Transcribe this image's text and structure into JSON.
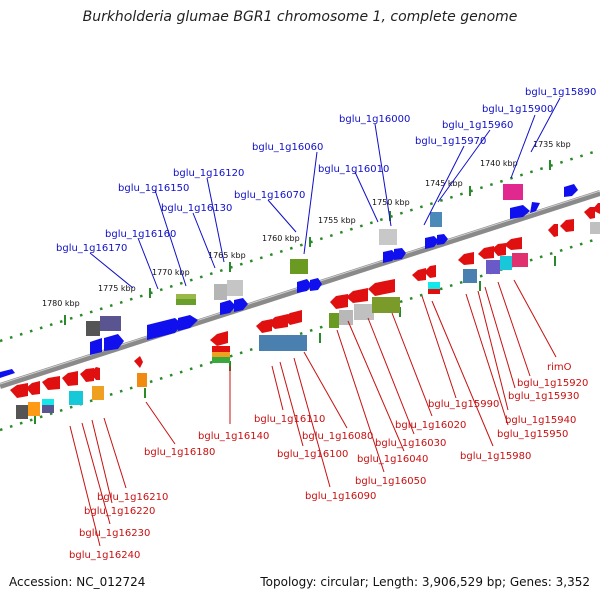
{
  "header": {
    "title": "Burkholderia glumae BGR1 chromosome 1, complete genome"
  },
  "footer": {
    "accession": "Accession: NC_012724",
    "summary": "Topology: circular; Length: 3,906,529 bp; Genes: 3,352"
  },
  "scale": {
    "ticks": [
      "1735 kbp",
      "1740 kbp",
      "1745 kbp",
      "1750 kbp",
      "1755 kbp",
      "1760 kbp",
      "1765 kbp",
      "1770 kbp",
      "1775 kbp",
      "1780 kbp"
    ]
  },
  "top_genes": [
    "bglu_1g15890",
    "bglu_1g15900",
    "bglu_1g15960",
    "bglu_1g15970",
    "bglu_1g16000",
    "bglu_1g16010",
    "bglu_1g16060",
    "bglu_1g16070",
    "bglu_1g16120",
    "bglu_1g16150",
    "bglu_1g16130",
    "bglu_1g16160",
    "bglu_1g16170"
  ],
  "bottom_genes": [
    "rimO",
    "bglu_1g15920",
    "bglu_1g15930",
    "bglu_1g15940",
    "bglu_1g15950",
    "bglu_1g15990",
    "bglu_1g15980",
    "bglu_1g16020",
    "bglu_1g16030",
    "bglu_1g16040",
    "bglu_1g16050",
    "bglu_1g16080",
    "bglu_1g16090",
    "bglu_1g16110",
    "bglu_1g16100",
    "bglu_1g16140",
    "bglu_1g16180",
    "bglu_1g16210",
    "bglu_1g16220",
    "bglu_1g16230",
    "bglu_1g16240"
  ],
  "colors": {
    "forward_strand": "#1010ee",
    "reverse_strand": "#e01010",
    "top_label": "#1010c8",
    "bottom_label": "#c81010",
    "backbone": "#777777",
    "track_dots": "#2a8a2a"
  }
}
